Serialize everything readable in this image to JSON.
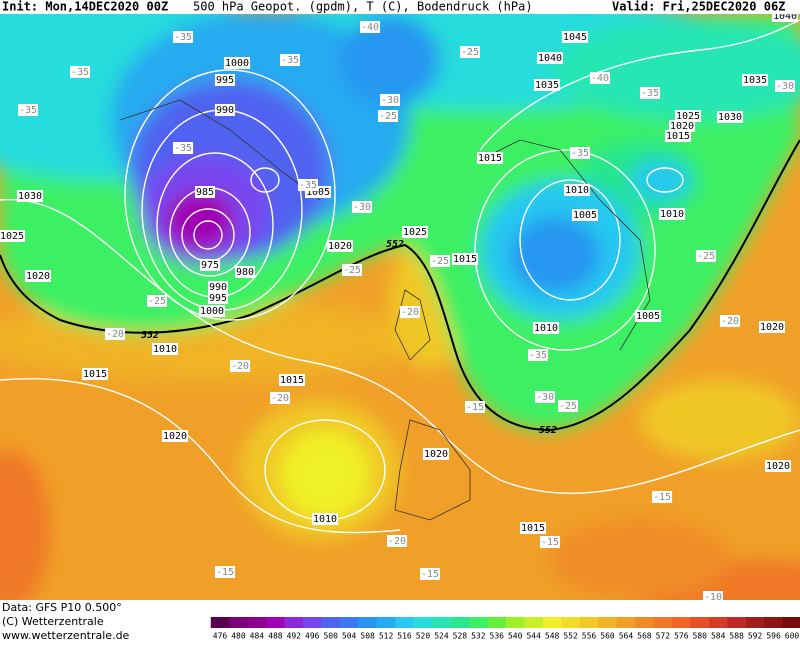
{
  "header": {
    "init": "Init: Mon,14DEC2020 00Z",
    "title": "500 hPa Geopot. (gpdm), T (C), Bodendruck (hPa)",
    "valid": "Valid: Fri,25DEC2020 06Z"
  },
  "map": {
    "isobar_labels": [
      1000,
      995,
      990,
      985,
      975,
      980,
      990,
      995,
      1000,
      1005,
      1010,
      1015,
      1020,
      1020,
      1025,
      1015,
      1015,
      1030,
      1025,
      1020,
      1045,
      1040,
      1035,
      1040,
      1035,
      1030,
      1025,
      1020,
      1015,
      1010,
      1005,
      1010,
      1010,
      1005,
      1020,
      1015,
      1020,
      1010,
      1015,
      1020
    ],
    "temperature_labels": [
      -35,
      -40,
      -35,
      -35,
      -35,
      -35,
      -35,
      -30,
      -25,
      -25,
      -40,
      -35,
      -35,
      -30,
      -25,
      -25,
      -20,
      -20,
      -20,
      -20,
      -15,
      -35,
      -30,
      -25,
      -25,
      -20,
      -15,
      -15,
      -20,
      -15,
      -15,
      -10,
      -30,
      -25
    ],
    "contour_labels": [
      552,
      552,
      552
    ]
  },
  "footer": {
    "data": "Data: GFS P10 0.500°",
    "copyright": "(C) Wetterzentrale",
    "url": "www.wetterzentrale.de"
  },
  "colorbar": {
    "labels": [
      476,
      480,
      484,
      488,
      492,
      496,
      500,
      504,
      508,
      512,
      516,
      520,
      524,
      528,
      532,
      536,
      540,
      544,
      548,
      552,
      556,
      560,
      564,
      568,
      572,
      576,
      580,
      584,
      588,
      592,
      596,
      600
    ],
    "colors": [
      "#5a0050",
      "#780078",
      "#8c008c",
      "#a000b4",
      "#8c28dc",
      "#7846f0",
      "#5064f0",
      "#3c78f0",
      "#2896f0",
      "#28aaf0",
      "#28c8f0",
      "#28dcdc",
      "#28e6b4",
      "#28e68c",
      "#3cf064",
      "#64f03c",
      "#a0f028",
      "#c8f028",
      "#f0f028",
      "#f0dc28",
      "#f0c828",
      "#f0b428",
      "#f0a028",
      "#f08c28",
      "#f07828",
      "#f06428",
      "#e65028",
      "#d23c28",
      "#be2828",
      "#a01e1e",
      "#8c1414",
      "#780a0a"
    ]
  }
}
